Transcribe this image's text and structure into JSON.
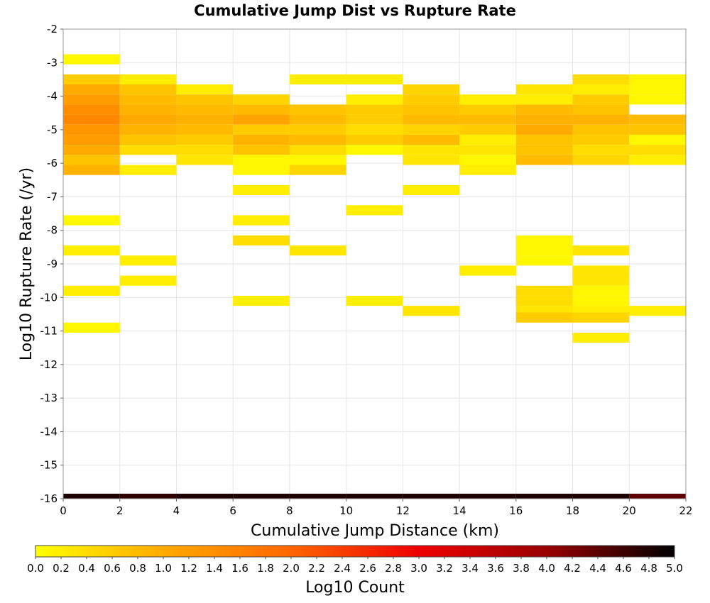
{
  "chart_data": {
    "type": "heatmap",
    "title": "Cumulative Jump Dist vs Rupture Rate",
    "xlabel": "Cumulative Jump Distance (km)",
    "ylabel": "Log10 Rupture Rate (/yr)",
    "colorbar_label": "Log10 Count",
    "xlim": [
      0,
      22
    ],
    "ylim": [
      -16,
      -2
    ],
    "x_ticks": [
      "0",
      "2",
      "4",
      "6",
      "8",
      "10",
      "12",
      "14",
      "16",
      "18",
      "20",
      "22"
    ],
    "y_ticks": [
      "-2",
      "-3",
      "-4",
      "-5",
      "-6",
      "-7",
      "-8",
      "-9",
      "-10",
      "-11",
      "-12",
      "-13",
      "-14",
      "-15",
      "-16"
    ],
    "colorbar_ticks": [
      "0.0",
      "0.2",
      "0.4",
      "0.6",
      "0.8",
      "1.0",
      "1.2",
      "1.4",
      "1.6",
      "1.8",
      "2.0",
      "2.2",
      "2.4",
      "2.6",
      "2.8",
      "3.0",
      "3.2",
      "3.4",
      "3.6",
      "3.8",
      "4.0",
      "4.2",
      "4.4",
      "4.6",
      "4.8",
      "5.0"
    ],
    "colorbar_range": [
      0,
      5
    ],
    "colorscale": [
      "#ffff00",
      "#ffaa00",
      "#ff6600",
      "#ee0000",
      "#990000",
      "#000000"
    ],
    "grid": true,
    "x_bin_width": 2,
    "y_bin_height": 0.3,
    "cells": [
      {
        "x": 0,
        "y": -2.9,
        "v": 0.1
      },
      {
        "x": 0,
        "y": -3.5,
        "v": 0.6
      },
      {
        "x": 0,
        "y": -3.8,
        "v": 1.0
      },
      {
        "x": 0,
        "y": -4.1,
        "v": 1.2
      },
      {
        "x": 0,
        "y": -4.4,
        "v": 1.4
      },
      {
        "x": 0,
        "y": -4.7,
        "v": 1.5
      },
      {
        "x": 0,
        "y": -5.0,
        "v": 1.3
      },
      {
        "x": 0,
        "y": -5.3,
        "v": 1.2
      },
      {
        "x": 0,
        "y": -5.6,
        "v": 1.0
      },
      {
        "x": 0,
        "y": -5.9,
        "v": 0.7
      },
      {
        "x": 0,
        "y": -6.2,
        "v": 0.9
      },
      {
        "x": 0,
        "y": -7.7,
        "v": 0.1
      },
      {
        "x": 0,
        "y": -8.6,
        "v": 0.2
      },
      {
        "x": 0,
        "y": -9.8,
        "v": 0.2
      },
      {
        "x": 0,
        "y": -10.9,
        "v": 0.1
      },
      {
        "x": 0,
        "y": -16.0,
        "v": 4.8
      },
      {
        "x": 2,
        "y": -3.5,
        "v": 0.2
      },
      {
        "x": 2,
        "y": -3.8,
        "v": 0.7
      },
      {
        "x": 2,
        "y": -4.1,
        "v": 0.8
      },
      {
        "x": 2,
        "y": -4.4,
        "v": 0.9
      },
      {
        "x": 2,
        "y": -4.7,
        "v": 1.0
      },
      {
        "x": 2,
        "y": -5.0,
        "v": 0.9
      },
      {
        "x": 2,
        "y": -5.3,
        "v": 0.7
      },
      {
        "x": 2,
        "y": -5.6,
        "v": 0.4
      },
      {
        "x": 2,
        "y": -6.2,
        "v": 0.2
      },
      {
        "x": 2,
        "y": -8.9,
        "v": 0.2
      },
      {
        "x": 2,
        "y": -9.5,
        "v": 0.2
      },
      {
        "x": 2,
        "y": -16.0,
        "v": 4.7
      },
      {
        "x": 4,
        "y": -3.8,
        "v": 0.2
      },
      {
        "x": 4,
        "y": -4.1,
        "v": 0.7
      },
      {
        "x": 4,
        "y": -4.4,
        "v": 0.8
      },
      {
        "x": 4,
        "y": -4.7,
        "v": 0.9
      },
      {
        "x": 4,
        "y": -5.0,
        "v": 0.8
      },
      {
        "x": 4,
        "y": -5.3,
        "v": 0.6
      },
      {
        "x": 4,
        "y": -5.6,
        "v": 0.4
      },
      {
        "x": 4,
        "y": -5.9,
        "v": 0.3
      },
      {
        "x": 4,
        "y": -16.0,
        "v": 4.8
      },
      {
        "x": 6,
        "y": -4.1,
        "v": 0.5
      },
      {
        "x": 6,
        "y": -4.4,
        "v": 0.8
      },
      {
        "x": 6,
        "y": -4.7,
        "v": 1.1
      },
      {
        "x": 6,
        "y": -5.0,
        "v": 0.6
      },
      {
        "x": 6,
        "y": -5.3,
        "v": 0.9
      },
      {
        "x": 6,
        "y": -5.6,
        "v": 0.7
      },
      {
        "x": 6,
        "y": -5.9,
        "v": 0.1
      },
      {
        "x": 6,
        "y": -6.2,
        "v": 0.1
      },
      {
        "x": 6,
        "y": -6.8,
        "v": 0.2
      },
      {
        "x": 6,
        "y": -7.7,
        "v": 0.2
      },
      {
        "x": 6,
        "y": -8.3,
        "v": 0.4
      },
      {
        "x": 6,
        "y": -10.1,
        "v": 0.2
      },
      {
        "x": 6,
        "y": -16.0,
        "v": 4.8
      },
      {
        "x": 8,
        "y": -3.5,
        "v": 0.2
      },
      {
        "x": 8,
        "y": -4.4,
        "v": 0.7
      },
      {
        "x": 8,
        "y": -4.7,
        "v": 0.8
      },
      {
        "x": 8,
        "y": -5.0,
        "v": 0.6
      },
      {
        "x": 8,
        "y": -5.3,
        "v": 0.8
      },
      {
        "x": 8,
        "y": -5.6,
        "v": 0.4
      },
      {
        "x": 8,
        "y": -5.9,
        "v": 0.1
      },
      {
        "x": 8,
        "y": -6.2,
        "v": 0.5
      },
      {
        "x": 8,
        "y": -8.6,
        "v": 0.3
      },
      {
        "x": 8,
        "y": -16.0,
        "v": 4.8
      },
      {
        "x": 10,
        "y": -3.5,
        "v": 0.2
      },
      {
        "x": 10,
        "y": -4.1,
        "v": 0.2
      },
      {
        "x": 10,
        "y": -4.4,
        "v": 0.6
      },
      {
        "x": 10,
        "y": -4.7,
        "v": 0.6
      },
      {
        "x": 10,
        "y": -5.0,
        "v": 0.4
      },
      {
        "x": 10,
        "y": -5.3,
        "v": 0.6
      },
      {
        "x": 10,
        "y": -5.6,
        "v": 0.1
      },
      {
        "x": 10,
        "y": -7.4,
        "v": 0.2
      },
      {
        "x": 10,
        "y": -10.1,
        "v": 0.2
      },
      {
        "x": 10,
        "y": -16.0,
        "v": 4.8
      },
      {
        "x": 12,
        "y": -3.8,
        "v": 0.5
      },
      {
        "x": 12,
        "y": -4.1,
        "v": 0.6
      },
      {
        "x": 12,
        "y": -4.4,
        "v": 0.7
      },
      {
        "x": 12,
        "y": -4.7,
        "v": 0.8
      },
      {
        "x": 12,
        "y": -5.0,
        "v": 0.5
      },
      {
        "x": 12,
        "y": -5.3,
        "v": 0.8
      },
      {
        "x": 12,
        "y": -5.6,
        "v": 0.3
      },
      {
        "x": 12,
        "y": -5.9,
        "v": 0.3
      },
      {
        "x": 12,
        "y": -6.8,
        "v": 0.2
      },
      {
        "x": 12,
        "y": -10.4,
        "v": 0.3
      },
      {
        "x": 12,
        "y": -16.0,
        "v": 4.8
      },
      {
        "x": 14,
        "y": -4.1,
        "v": 0.2
      },
      {
        "x": 14,
        "y": -4.4,
        "v": 0.6
      },
      {
        "x": 14,
        "y": -4.7,
        "v": 0.8
      },
      {
        "x": 14,
        "y": -5.0,
        "v": 0.6
      },
      {
        "x": 14,
        "y": -5.3,
        "v": 0.2
      },
      {
        "x": 14,
        "y": -5.6,
        "v": 0.3
      },
      {
        "x": 14,
        "y": -5.9,
        "v": 0.1
      },
      {
        "x": 14,
        "y": -6.2,
        "v": 0.2
      },
      {
        "x": 14,
        "y": -9.2,
        "v": 0.2
      },
      {
        "x": 14,
        "y": -16.0,
        "v": 4.8
      },
      {
        "x": 16,
        "y": -3.8,
        "v": 0.3
      },
      {
        "x": 16,
        "y": -4.1,
        "v": 0.2
      },
      {
        "x": 16,
        "y": -4.4,
        "v": 0.8
      },
      {
        "x": 16,
        "y": -4.7,
        "v": 0.9
      },
      {
        "x": 16,
        "y": -5.0,
        "v": 1.0
      },
      {
        "x": 16,
        "y": -5.3,
        "v": 0.7
      },
      {
        "x": 16,
        "y": -5.6,
        "v": 0.7
      },
      {
        "x": 16,
        "y": -5.9,
        "v": 0.8
      },
      {
        "x": 16,
        "y": -8.3,
        "v": 0.1
      },
      {
        "x": 16,
        "y": -8.6,
        "v": 0.1
      },
      {
        "x": 16,
        "y": -8.9,
        "v": 0.1
      },
      {
        "x": 16,
        "y": -9.8,
        "v": 0.4
      },
      {
        "x": 16,
        "y": -10.1,
        "v": 0.4
      },
      {
        "x": 16,
        "y": -10.4,
        "v": 0.3
      },
      {
        "x": 16,
        "y": -10.6,
        "v": 0.6
      },
      {
        "x": 16,
        "y": -16.0,
        "v": 4.8
      },
      {
        "x": 18,
        "y": -3.5,
        "v": 0.4
      },
      {
        "x": 18,
        "y": -3.8,
        "v": 0.2
      },
      {
        "x": 18,
        "y": -4.1,
        "v": 0.6
      },
      {
        "x": 18,
        "y": -4.4,
        "v": 0.7
      },
      {
        "x": 18,
        "y": -4.7,
        "v": 0.9
      },
      {
        "x": 18,
        "y": -5.0,
        "v": 0.7
      },
      {
        "x": 18,
        "y": -5.3,
        "v": 0.6
      },
      {
        "x": 18,
        "y": -5.6,
        "v": 0.4
      },
      {
        "x": 18,
        "y": -5.9,
        "v": 0.5
      },
      {
        "x": 18,
        "y": -8.6,
        "v": 0.3
      },
      {
        "x": 18,
        "y": -9.2,
        "v": 0.3
      },
      {
        "x": 18,
        "y": -9.5,
        "v": 0.3
      },
      {
        "x": 18,
        "y": -9.8,
        "v": 0.1
      },
      {
        "x": 18,
        "y": -10.1,
        "v": 0.1
      },
      {
        "x": 18,
        "y": -10.4,
        "v": 0.2
      },
      {
        "x": 18,
        "y": -10.6,
        "v": 0.5
      },
      {
        "x": 18,
        "y": -11.2,
        "v": 0.2
      },
      {
        "x": 18,
        "y": -16.0,
        "v": 4.8
      },
      {
        "x": 20,
        "y": -3.5,
        "v": 0.1
      },
      {
        "x": 20,
        "y": -3.8,
        "v": 0.1
      },
      {
        "x": 20,
        "y": -4.1,
        "v": 0.1
      },
      {
        "x": 20,
        "y": -4.7,
        "v": 0.8
      },
      {
        "x": 20,
        "y": -5.0,
        "v": 0.7
      },
      {
        "x": 20,
        "y": -5.3,
        "v": 0.1
      },
      {
        "x": 20,
        "y": -5.6,
        "v": 0.4
      },
      {
        "x": 20,
        "y": -5.9,
        "v": 0.2
      },
      {
        "x": 20,
        "y": -10.4,
        "v": 0.2
      },
      {
        "x": 20,
        "y": -16.0,
        "v": 4.4
      }
    ]
  }
}
